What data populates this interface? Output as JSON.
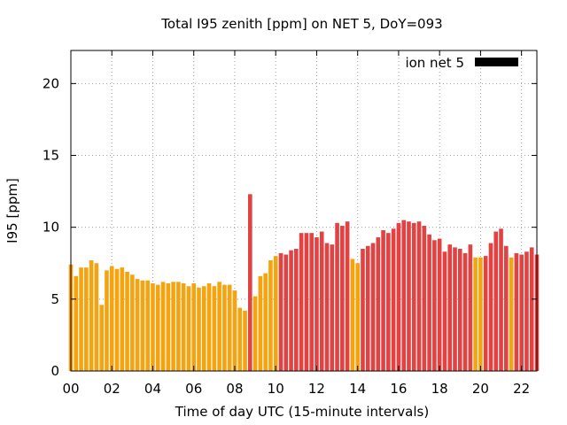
{
  "chart_data": {
    "type": "bar",
    "title": "Total I95 zenith [ppm] on NET 5, DoY=093",
    "xlabel": "Time of day UTC (15-minute intervals)",
    "ylabel": "I95 [ppm]",
    "xlim": [
      0,
      22.75
    ],
    "ylim": [
      0,
      22.3
    ],
    "x_ticks": [
      0,
      2,
      4,
      6,
      8,
      10,
      12,
      14,
      16,
      18,
      20,
      22
    ],
    "x_tick_labels": [
      "00",
      "02",
      "04",
      "06",
      "08",
      "10",
      "12",
      "14",
      "16",
      "18",
      "20",
      "22"
    ],
    "y_ticks": [
      0,
      5,
      10,
      15,
      20
    ],
    "y_tick_labels": [
      "0",
      "5",
      "10",
      "15",
      "20"
    ],
    "grid": true,
    "legend": {
      "label": "ion net 5",
      "color": "#000000",
      "position": "top-right"
    },
    "interval_hours": 0.25,
    "colors": {
      "normal": "#f5a40f",
      "high": "#e34242"
    },
    "values": [
      7.4,
      6.6,
      7.2,
      7.2,
      7.7,
      7.5,
      4.6,
      7.0,
      7.3,
      7.1,
      7.2,
      6.9,
      6.7,
      6.4,
      6.3,
      6.3,
      6.1,
      6.0,
      6.2,
      6.1,
      6.2,
      6.2,
      6.1,
      5.9,
      6.1,
      5.8,
      5.9,
      6.1,
      5.9,
      6.2,
      6.0,
      6.0,
      5.6,
      4.4,
      4.2,
      12.3,
      5.2,
      6.6,
      6.8,
      7.7,
      8.0,
      8.2,
      8.1,
      8.4,
      8.5,
      9.6,
      9.6,
      9.6,
      9.3,
      9.7,
      8.9,
      8.8,
      10.3,
      10.1,
      10.4,
      7.8,
      7.5,
      8.5,
      8.7,
      8.9,
      9.3,
      9.8,
      9.6,
      9.9,
      10.3,
      10.5,
      10.4,
      10.3,
      10.4,
      10.1,
      9.5,
      9.1,
      9.2,
      8.3,
      8.8,
      8.6,
      8.5,
      8.2,
      8.8,
      7.9,
      7.9,
      8.0,
      8.9,
      9.7,
      9.9,
      8.7,
      7.9,
      8.2,
      8.1,
      8.3,
      8.6,
      8.1
    ],
    "levels": [
      "normal",
      "normal",
      "normal",
      "normal",
      "normal",
      "normal",
      "normal",
      "normal",
      "normal",
      "normal",
      "normal",
      "normal",
      "normal",
      "normal",
      "normal",
      "normal",
      "normal",
      "normal",
      "normal",
      "normal",
      "normal",
      "normal",
      "normal",
      "normal",
      "normal",
      "normal",
      "normal",
      "normal",
      "normal",
      "normal",
      "normal",
      "normal",
      "normal",
      "normal",
      "normal",
      "high",
      "normal",
      "normal",
      "normal",
      "normal",
      "normal",
      "high",
      "high",
      "high",
      "high",
      "high",
      "high",
      "high",
      "high",
      "high",
      "high",
      "high",
      "high",
      "high",
      "high",
      "normal",
      "normal",
      "high",
      "high",
      "high",
      "high",
      "high",
      "high",
      "high",
      "high",
      "high",
      "high",
      "high",
      "high",
      "high",
      "high",
      "high",
      "high",
      "high",
      "high",
      "high",
      "high",
      "high",
      "high",
      "normal",
      "normal",
      "high",
      "high",
      "high",
      "high",
      "high",
      "normal",
      "high",
      "high",
      "high",
      "high",
      "high"
    ]
  }
}
